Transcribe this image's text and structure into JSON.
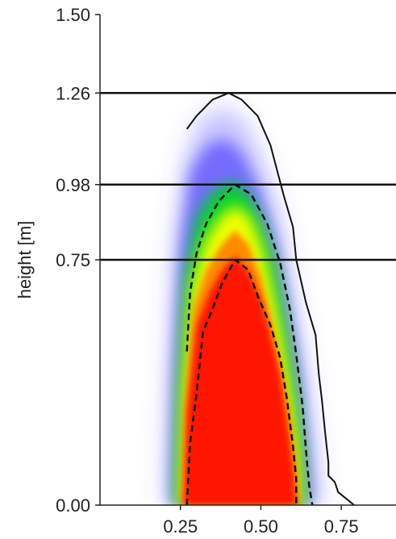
{
  "chart_data": {
    "type": "heatmap",
    "ylabel": "height [m]",
    "xlim": [
      0.0,
      0.92
    ],
    "ylim": [
      0.0,
      1.5
    ],
    "x_ticks": [
      {
        "value": 0.25,
        "label": "0.25"
      },
      {
        "value": 0.5,
        "label": "0.50"
      },
      {
        "value": 0.75,
        "label": "0.75"
      }
    ],
    "y_ticks": [
      {
        "value": 0.0,
        "label": "0.00"
      },
      {
        "value": 0.75,
        "label": "0.75"
      },
      {
        "value": 0.98,
        "label": "0.98"
      },
      {
        "value": 1.26,
        "label": "1.26"
      },
      {
        "value": 1.5,
        "label": "1.50"
      }
    ],
    "horizontal_lines": [
      0.75,
      0.98,
      1.26
    ],
    "colors": {
      "low": "#5a4cff",
      "mid_low": "#00d22a",
      "mid": "#f2ff00",
      "mid_high": "#ff8a00",
      "high": "#ff1400",
      "axis": "#222222"
    },
    "contours": [
      {
        "style": "solid",
        "points": [
          [
            0.27,
            1.15
          ],
          [
            0.3,
            1.19
          ],
          [
            0.35,
            1.24
          ],
          [
            0.4,
            1.26
          ],
          [
            0.44,
            1.24
          ],
          [
            0.49,
            1.19
          ],
          [
            0.53,
            1.1
          ],
          [
            0.57,
            0.95
          ],
          [
            0.6,
            0.85
          ],
          [
            0.61,
            0.75
          ],
          [
            0.64,
            0.62
          ],
          [
            0.67,
            0.52
          ],
          [
            0.68,
            0.4
          ],
          [
            0.69,
            0.32
          ],
          [
            0.7,
            0.22
          ],
          [
            0.71,
            0.13
          ],
          [
            0.71,
            0.09
          ],
          [
            0.73,
            0.07
          ],
          [
            0.74,
            0.04
          ],
          [
            0.79,
            0.0
          ]
        ]
      },
      {
        "style": "dashed",
        "points": [
          [
            0.27,
            0.47
          ],
          [
            0.28,
            0.65
          ],
          [
            0.3,
            0.77
          ],
          [
            0.33,
            0.86
          ],
          [
            0.37,
            0.93
          ],
          [
            0.42,
            0.98
          ],
          [
            0.47,
            0.95
          ],
          [
            0.52,
            0.86
          ],
          [
            0.56,
            0.74
          ],
          [
            0.59,
            0.6
          ],
          [
            0.61,
            0.46
          ],
          [
            0.63,
            0.3
          ],
          [
            0.64,
            0.17
          ],
          [
            0.65,
            0.06
          ],
          [
            0.66,
            0.0
          ]
        ]
      },
      {
        "style": "dashed",
        "points": [
          [
            0.27,
            0.0
          ],
          [
            0.28,
            0.19
          ],
          [
            0.3,
            0.34
          ],
          [
            0.32,
            0.53
          ],
          [
            0.35,
            0.6
          ],
          [
            0.38,
            0.68
          ],
          [
            0.42,
            0.75
          ],
          [
            0.46,
            0.72
          ],
          [
            0.49,
            0.64
          ],
          [
            0.53,
            0.55
          ],
          [
            0.56,
            0.45
          ],
          [
            0.58,
            0.33
          ],
          [
            0.6,
            0.18
          ],
          [
            0.61,
            0.08
          ],
          [
            0.61,
            0.0
          ]
        ]
      }
    ]
  }
}
